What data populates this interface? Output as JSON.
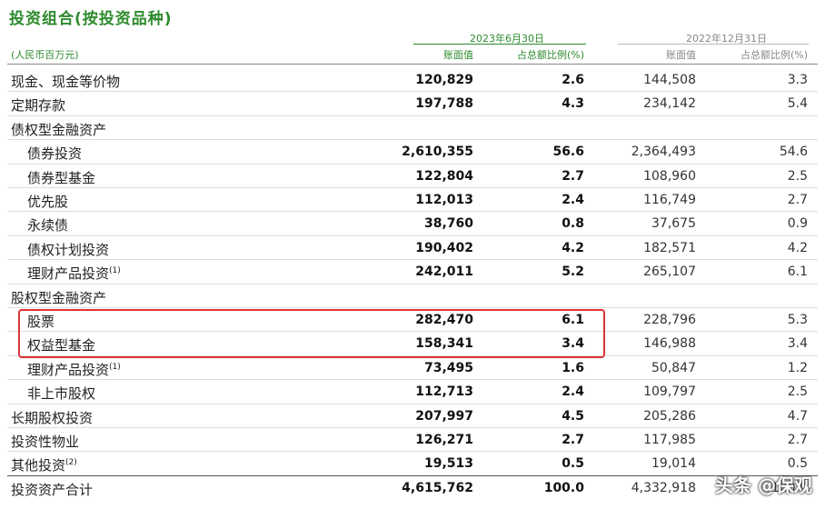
{
  "title": "投资组合(按投资品种)",
  "unit": "(人民币百万元)",
  "header": {
    "period1": "2023年6月30日",
    "period2": "2022年12月31日",
    "book_value": "账面值",
    "share": "占总额比例(%)"
  },
  "rows": [
    {
      "label": "现金、现金等价物",
      "sup": "",
      "indent": 0,
      "v1": "120,829",
      "p1": "2.6",
      "v2": "144,508",
      "p2": "3.3"
    },
    {
      "label": "定期存款",
      "sup": "",
      "indent": 0,
      "v1": "197,788",
      "p1": "4.3",
      "v2": "234,142",
      "p2": "5.4"
    },
    {
      "label": "债权型金融资产",
      "sup": "",
      "indent": 0,
      "v1": "",
      "p1": "",
      "v2": "",
      "p2": ""
    },
    {
      "label": "债券投资",
      "sup": "",
      "indent": 1,
      "v1": "2,610,355",
      "p1": "56.6",
      "v2": "2,364,493",
      "p2": "54.6"
    },
    {
      "label": "债券型基金",
      "sup": "",
      "indent": 1,
      "v1": "122,804",
      "p1": "2.7",
      "v2": "108,960",
      "p2": "2.5"
    },
    {
      "label": "优先股",
      "sup": "",
      "indent": 1,
      "v1": "112,013",
      "p1": "2.4",
      "v2": "116,749",
      "p2": "2.7"
    },
    {
      "label": "永续债",
      "sup": "",
      "indent": 1,
      "v1": "38,760",
      "p1": "0.8",
      "v2": "37,675",
      "p2": "0.9"
    },
    {
      "label": "债权计划投资",
      "sup": "",
      "indent": 1,
      "v1": "190,402",
      "p1": "4.2",
      "v2": "182,571",
      "p2": "4.2"
    },
    {
      "label": "理财产品投资",
      "sup": "(1)",
      "indent": 1,
      "v1": "242,011",
      "p1": "5.2",
      "v2": "265,107",
      "p2": "6.1"
    },
    {
      "label": "股权型金融资产",
      "sup": "",
      "indent": 0,
      "v1": "",
      "p1": "",
      "v2": "",
      "p2": ""
    },
    {
      "label": "股票",
      "sup": "",
      "indent": 1,
      "v1": "282,470",
      "p1": "6.1",
      "v2": "228,796",
      "p2": "5.3"
    },
    {
      "label": "权益型基金",
      "sup": "",
      "indent": 1,
      "v1": "158,341",
      "p1": "3.4",
      "v2": "146,988",
      "p2": "3.4"
    },
    {
      "label": "理财产品投资",
      "sup": "(1)",
      "indent": 1,
      "v1": "73,495",
      "p1": "1.6",
      "v2": "50,847",
      "p2": "1.2"
    },
    {
      "label": "非上市股权",
      "sup": "",
      "indent": 1,
      "v1": "112,713",
      "p1": "2.4",
      "v2": "109,797",
      "p2": "2.5"
    },
    {
      "label": "长期股权投资",
      "sup": "",
      "indent": 0,
      "v1": "207,997",
      "p1": "4.5",
      "v2": "205,286",
      "p2": "4.7"
    },
    {
      "label": "投资性物业",
      "sup": "",
      "indent": 0,
      "v1": "126,271",
      "p1": "2.7",
      "v2": "117,985",
      "p2": "2.7"
    },
    {
      "label": "其他投资",
      "sup": "(2)",
      "indent": 0,
      "v1": "19,513",
      "p1": "0.5",
      "v2": "19,014",
      "p2": "0.5"
    },
    {
      "label": "投资资产合计",
      "sup": "",
      "indent": 0,
      "v1": "4,615,762",
      "p1": "100.0",
      "v2": "4,332,918",
      "p2": "100.0"
    }
  ],
  "watermark": "头条 @保观"
}
